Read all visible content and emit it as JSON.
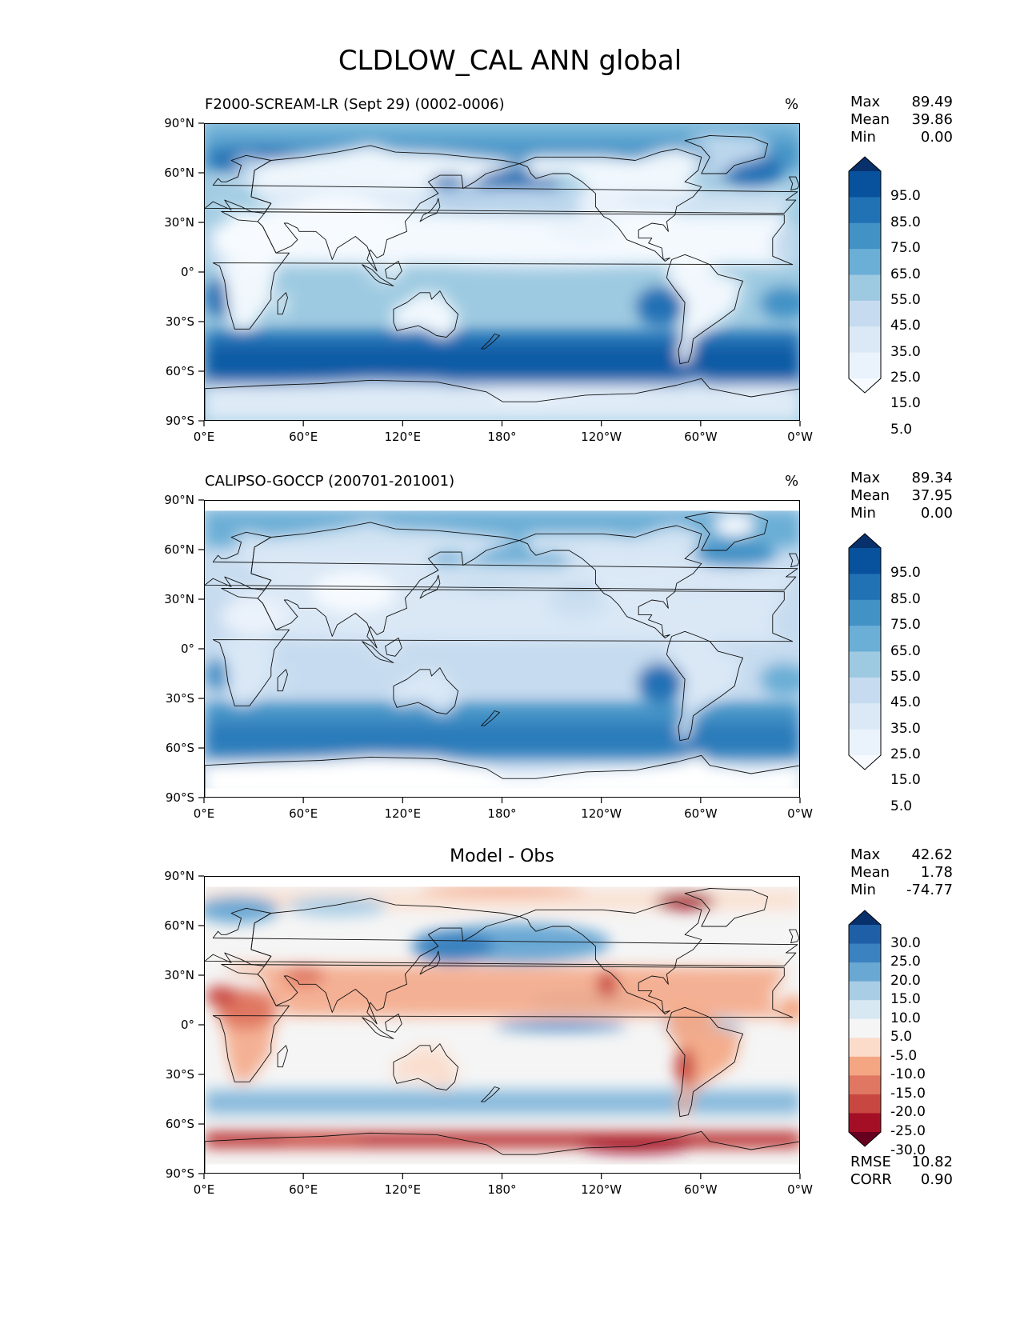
{
  "title": "CLDLOW_CAL ANN global",
  "axes": {
    "lat_ticks": [
      "90°N",
      "60°N",
      "30°N",
      "0°",
      "30°S",
      "60°S",
      "90°S"
    ],
    "lon_ticks": [
      "0°E",
      "60°E",
      "120°E",
      "180°",
      "120°W",
      "60°W",
      "0°W"
    ],
    "lat_range": [
      -90,
      90
    ],
    "lon_range": [
      0,
      360
    ]
  },
  "panels": [
    {
      "id": "model",
      "title": "F2000-SCREAM-LR (Sept 29) (0002-0006)",
      "units": "%",
      "stats": [
        {
          "label": "Max",
          "value": "89.49"
        },
        {
          "label": "Mean",
          "value": "39.86"
        },
        {
          "label": "Min",
          "value": "0.00"
        }
      ],
      "colorbar": {
        "colormap": "Blues",
        "labels": [
          "95.0",
          "85.0",
          "75.0",
          "65.0",
          "55.0",
          "45.0",
          "35.0",
          "25.0",
          "15.0",
          "5.0"
        ],
        "colors": [
          "#08306b",
          "#08519c",
          "#2171b5",
          "#4292c6",
          "#6baed6",
          "#9ecae1",
          "#c6dbef",
          "#dbe9f6",
          "#eaf2fb",
          "#f7fbff"
        ]
      },
      "extra_stats": []
    },
    {
      "id": "obs",
      "title": "CALIPSO-GOCCP (200701-201001)",
      "units": "%",
      "stats": [
        {
          "label": "Max",
          "value": "89.34"
        },
        {
          "label": "Mean",
          "value": "37.95"
        },
        {
          "label": "Min",
          "value": "0.00"
        }
      ],
      "colorbar": {
        "colormap": "Blues",
        "labels": [
          "95.0",
          "85.0",
          "75.0",
          "65.0",
          "55.0",
          "45.0",
          "35.0",
          "25.0",
          "15.0",
          "5.0"
        ],
        "colors": [
          "#08306b",
          "#08519c",
          "#2171b5",
          "#4292c6",
          "#6baed6",
          "#9ecae1",
          "#c6dbef",
          "#dbe9f6",
          "#eaf2fb",
          "#f7fbff"
        ]
      },
      "extra_stats": []
    },
    {
      "id": "diff",
      "title": "Model - Obs",
      "units": "",
      "stats": [
        {
          "label": "Max",
          "value": "42.62"
        },
        {
          "label": "Mean",
          "value": "1.78"
        },
        {
          "label": "Min",
          "value": "-74.77"
        }
      ],
      "colorbar": {
        "colormap": "RdBu_r",
        "labels": [
          "30.0",
          "25.0",
          "20.0",
          "15.0",
          "10.0",
          "5.0",
          "-5.0",
          "-10.0",
          "-15.0",
          "-20.0",
          "-25.0",
          "-30.0"
        ],
        "colors": [
          "#08306b",
          "#1f5fa8",
          "#3b82c0",
          "#6aa8d4",
          "#a9cde5",
          "#d8e8f3",
          "#f5f5f5",
          "#fbdccb",
          "#f4a582",
          "#e07762",
          "#c94741",
          "#a50f25",
          "#67001f"
        ]
      },
      "extra_stats": [
        {
          "label": "RMSE",
          "value": "10.82"
        },
        {
          "label": "CORR",
          "value": "0.90"
        }
      ]
    }
  ]
}
